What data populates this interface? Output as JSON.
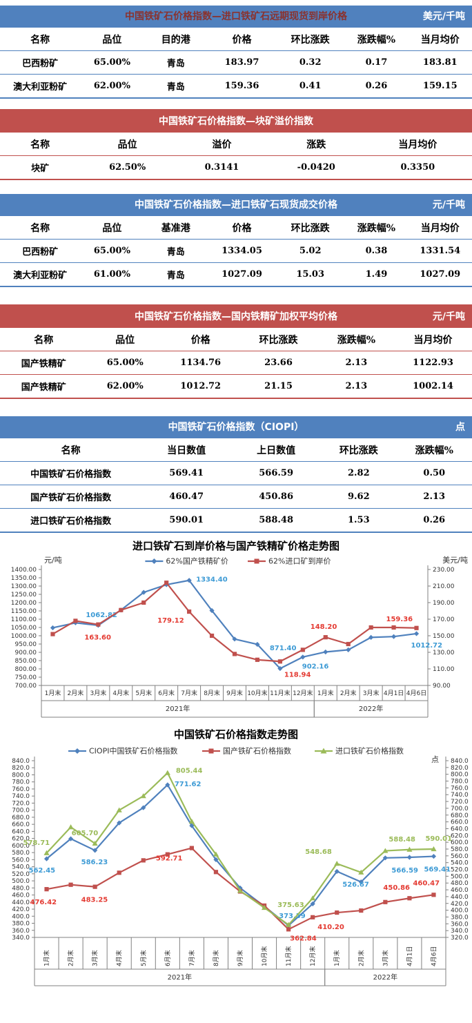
{
  "colors": {
    "blue_band": "#5081BE",
    "blue_border": "#4F81BD",
    "red_band": "#C0504D",
    "axis_text": "#333333",
    "axis_line": "#808080",
    "series_blue": "#4F81BD",
    "series_red": "#C0504D",
    "series_green": "#9BBB59",
    "label_blue": "#3E9BD5",
    "label_red": "#E43B33",
    "label_green": "#9BBB59"
  },
  "tables": [
    {
      "title": "中国铁矿石价格指数—进口铁矿石远期现货到岸价格",
      "unit": "美元/千吨",
      "theme": "blue",
      "title_color": "#8A322E",
      "unit_color": "#FFFFFF",
      "columns": [
        "名称",
        "品位",
        "目的港",
        "价格",
        "环比涨跌",
        "涨跌幅%",
        "当月均价"
      ],
      "rows": [
        [
          "巴西粉矿",
          "65.00%",
          "青岛",
          "183.97",
          "0.32",
          "0.17",
          "183.81"
        ],
        [
          "澳大利亚粉矿",
          "62.00%",
          "青岛",
          "159.36",
          "0.41",
          "0.26",
          "159.15"
        ]
      ]
    },
    {
      "title": "中国铁矿石价格指数—块矿溢价指数",
      "unit": "",
      "theme": "red",
      "title_color": "#FFFFFF",
      "unit_color": "#FFFFFF",
      "columns": [
        "名称",
        "品位",
        "溢价",
        "涨跌",
        "当月均价"
      ],
      "rows": [
        [
          "块矿",
          "62.50%",
          "0.3141",
          "-0.0420",
          "0.3350"
        ]
      ]
    },
    {
      "title": "中国铁矿石价格指数—进口铁矿石现货成交价格",
      "unit": "元/千吨",
      "theme": "blue",
      "title_color": "#FFFFFF",
      "unit_color": "#FFFFFF",
      "columns": [
        "名称",
        "品位",
        "基准港",
        "价格",
        "环比涨跌",
        "涨跌幅%",
        "当月均价"
      ],
      "rows": [
        [
          "巴西粉矿",
          "65.00%",
          "青岛",
          "1334.05",
          "5.02",
          "0.38",
          "1331.54"
        ],
        [
          "澳大利亚粉矿",
          "61.00%",
          "青岛",
          "1027.09",
          "15.03",
          "1.49",
          "1027.09"
        ]
      ]
    },
    {
      "title": "中国铁矿石价格指数—国内铁精矿加权平均价格",
      "unit": "元/千吨",
      "theme": "red",
      "title_color": "#FFFFFF",
      "unit_color": "#FFFFFF",
      "columns": [
        "名称",
        "品位",
        "价格",
        "环比涨跌",
        "涨跌幅%",
        "当月均价"
      ],
      "rows": [
        [
          "国产铁精矿",
          "65.00%",
          "1134.76",
          "23.66",
          "2.13",
          "1122.93"
        ],
        [
          "国产铁精矿",
          "62.00%",
          "1012.72",
          "21.15",
          "2.13",
          "1002.14"
        ]
      ]
    },
    {
      "title": "中国铁矿石价格指数（CIOPI）",
      "unit": "点",
      "theme": "blue",
      "title_color": "#FFFFFF",
      "unit_color": "#FFFFFF",
      "columns": [
        "名称",
        "当日数值",
        "上日数值",
        "环比涨跌",
        "涨跌幅%"
      ],
      "rows": [
        [
          "中国铁矿石价格指数",
          "569.41",
          "566.59",
          "2.82",
          "0.50"
        ],
        [
          "国产铁矿石价格指数",
          "460.47",
          "450.86",
          "9.62",
          "2.13"
        ],
        [
          "进口铁矿石价格指数",
          "590.01",
          "588.48",
          "1.53",
          "0.26"
        ]
      ]
    }
  ],
  "chart_data": [
    {
      "type": "line",
      "title": "进口铁矿石到岸价格与国产铁精矿价格走势图",
      "unit_left": "元/吨",
      "unit_right": "美元/吨",
      "left_axis": {
        "min": 700,
        "max": 1400,
        "step": 50,
        "decimals": 2
      },
      "right_axis": {
        "min": 90,
        "max": 230,
        "step": 20,
        "decimals": 2
      },
      "x_labels_vertical": false,
      "categories": [
        "1月末",
        "2月末",
        "3月末",
        "4月末",
        "5月末",
        "6月末",
        "7月末",
        "8月末",
        "9月末",
        "10月末",
        "11月末",
        "12月末",
        "1月末",
        "2月末",
        "3月末",
        "4月1日",
        "4月6日"
      ],
      "year_groups": [
        {
          "label": "2021年",
          "span": 12
        },
        {
          "label": "2022年",
          "span": 5
        }
      ],
      "series": [
        {
          "name": "62%国产铁精矿价",
          "axis": "left",
          "color": "#4F81BD",
          "label_color": "#3E9BD5",
          "marker": "diamond",
          "values": [
            1048,
            1078,
            1062.82,
            1155,
            1262,
            1308,
            1334.4,
            1152,
            980,
            948,
            802,
            871.4,
            902.16,
            915,
            990,
            995,
            1012.72
          ],
          "labels": [
            {
              "i": 2,
              "t": "1062.82",
              "dx": -18,
              "dy": -12
            },
            {
              "i": 6,
              "t": "1334.40",
              "dx": 10,
              "dy": 2
            },
            {
              "i": 11,
              "t": "871.40",
              "dx": -48,
              "dy": -10
            },
            {
              "i": 12,
              "t": "902.16",
              "dx": -34,
              "dy": 24
            },
            {
              "i": 16,
              "t": "1012.72",
              "dx": -8,
              "dy": 20
            }
          ]
        },
        {
          "name": "62%进口矿到岸价",
          "axis": "right",
          "color": "#C0504D",
          "label_color": "#E43B33",
          "marker": "square",
          "values": [
            152,
            168,
            163.6,
            181,
            190,
            214,
            179.12,
            150,
            128,
            121,
            118.94,
            133,
            148.2,
            140,
            160,
            160,
            159.36
          ],
          "labels": [
            {
              "i": 2,
              "t": "163.60",
              "dx": -20,
              "dy": 22
            },
            {
              "i": 6,
              "t": "179.12",
              "dx": -46,
              "dy": 16
            },
            {
              "i": 10,
              "t": "118.94",
              "dx": 6,
              "dy": 22
            },
            {
              "i": 12,
              "t": "148.20",
              "dx": -22,
              "dy": -12
            },
            {
              "i": 16,
              "t": "159.36",
              "dx": -44,
              "dy": -10
            }
          ]
        }
      ]
    },
    {
      "type": "line",
      "title": "中国铁矿石价格指数走势图",
      "unit_left": "",
      "unit_right": "点",
      "left_axis": {
        "min": 340,
        "max": 840,
        "step": 20,
        "decimals": 1
      },
      "right_axis": {
        "min": 320,
        "max": 840,
        "step": 20,
        "decimals": 1
      },
      "x_labels_vertical": true,
      "categories": [
        "1月末",
        "2月末",
        "3月末",
        "4月末",
        "5月末",
        "6月末",
        "7月末",
        "8月末",
        "9月末",
        "10月末",
        "11月末",
        "12月末",
        "1月末",
        "2月末",
        "3月末",
        "4月1日",
        "4月6日"
      ],
      "year_groups": [
        {
          "label": "2021年",
          "span": 12
        },
        {
          "label": "2022年",
          "span": 5
        }
      ],
      "series": [
        {
          "name": "CIOPI中国铁矿石价格指数",
          "axis": "left",
          "color": "#4F81BD",
          "label_color": "#3E9BD5",
          "marker": "diamond",
          "values": [
            562.45,
            619,
            586.23,
            664,
            707,
            771.62,
            656,
            560,
            480,
            428,
            373.59,
            435,
            526.67,
            497,
            565,
            566.59,
            569.41
          ],
          "labels": [
            {
              "i": 0,
              "t": "562.45",
              "dx": -26,
              "dy": 20
            },
            {
              "i": 2,
              "t": "586.23",
              "dx": -20,
              "dy": 20
            },
            {
              "i": 5,
              "t": "771.62",
              "dx": 10,
              "dy": 2
            },
            {
              "i": 10,
              "t": "373.59",
              "dx": -14,
              "dy": -11
            },
            {
              "i": 12,
              "t": "526.67",
              "dx": 8,
              "dy": 22
            },
            {
              "i": 15,
              "t": "566.59",
              "dx": -26,
              "dy": 22
            },
            {
              "i": 16,
              "t": "569.41",
              "dx": -14,
              "dy": 22
            }
          ]
        },
        {
          "name": "国产铁矿石价格指数",
          "axis": "left",
          "color": "#C0504D",
          "label_color": "#E43B33",
          "marker": "square",
          "values": [
            476.42,
            489,
            483.25,
            523,
            558,
            575,
            592.71,
            525,
            470,
            430,
            362.84,
            397,
            410.2,
            416,
            440,
            450.86,
            460.47
          ],
          "labels": [
            {
              "i": 0,
              "t": "476.42",
              "dx": -24,
              "dy": 22
            },
            {
              "i": 2,
              "t": "483.25",
              "dx": -20,
              "dy": 22
            },
            {
              "i": 6,
              "t": "592.71",
              "dx": -52,
              "dy": 18
            },
            {
              "i": 10,
              "t": "362.84",
              "dx": 2,
              "dy": 16
            },
            {
              "i": 12,
              "t": "410.20",
              "dx": -28,
              "dy": 24
            },
            {
              "i": 15,
              "t": "450.86",
              "dx": -38,
              "dy": -12
            },
            {
              "i": 16,
              "t": "460.47",
              "dx": -30,
              "dy": -14
            }
          ]
        },
        {
          "name": "进口铁矿石价格指数",
          "axis": "left",
          "color": "#9BBB59",
          "label_color": "#9BBB59",
          "marker": "triangle",
          "values": [
            578.71,
            652,
            605.7,
            700,
            740,
            805.44,
            668,
            575,
            472,
            424,
            375.63,
            451,
            548.68,
            524,
            585,
            588.48,
            590.01
          ],
          "labels": [
            {
              "i": 0,
              "t": "578.71",
              "dx": -34,
              "dy": -12
            },
            {
              "i": 2,
              "t": "605.70",
              "dx": -34,
              "dy": -12
            },
            {
              "i": 5,
              "t": "805.44",
              "dx": 12,
              "dy": 0
            },
            {
              "i": 10,
              "t": "375.63",
              "dx": -16,
              "dy": -26
            },
            {
              "i": 12,
              "t": "548.68",
              "dx": -46,
              "dy": -14
            },
            {
              "i": 15,
              "t": "588.48",
              "dx": -30,
              "dy": -12
            },
            {
              "i": 16,
              "t": "590.01",
              "dx": -12,
              "dy": -12
            }
          ]
        }
      ]
    }
  ]
}
